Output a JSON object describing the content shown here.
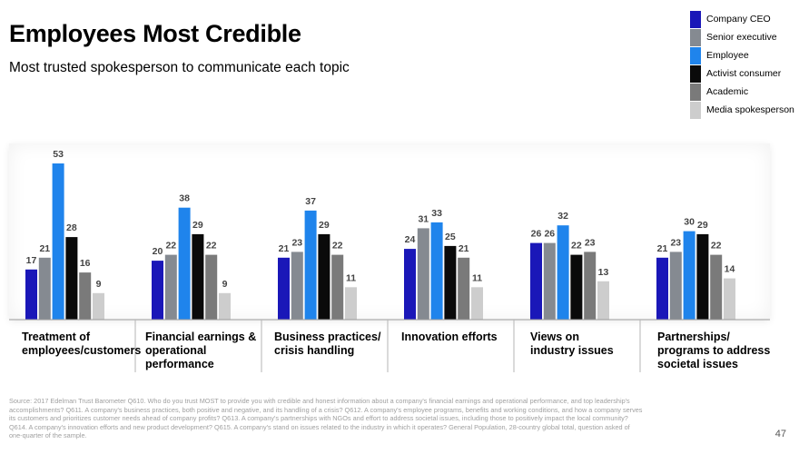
{
  "header": {
    "title": "Employees Most Credible",
    "subtitle": "Most trusted spokesperson to communicate each topic"
  },
  "chart_data": {
    "type": "bar",
    "title": "Employees Most Credible",
    "subtitle": "Most trusted spokesperson to communicate each topic",
    "categories": [
      "Treatment of employees/customers",
      "Financial earnings & operational performance",
      "Business practices/ crisis handling",
      "Innovation efforts",
      "Views on industry issues",
      "Partnerships/ programs to address societal issues"
    ],
    "series": [
      {
        "name": "Company CEO",
        "color": "#1a17b8",
        "values": [
          17,
          20,
          21,
          24,
          26,
          21
        ]
      },
      {
        "name": "Senior executive",
        "color": "#858a91",
        "values": [
          21,
          22,
          23,
          31,
          26,
          23
        ]
      },
      {
        "name": "Employee",
        "color": "#1f84ec",
        "values": [
          53,
          38,
          37,
          33,
          32,
          30
        ]
      },
      {
        "name": "Activist consumer",
        "color": "#0a0a0a",
        "values": [
          28,
          29,
          29,
          25,
          22,
          29
        ]
      },
      {
        "name": "Academic",
        "color": "#7a7a7a",
        "values": [
          16,
          22,
          22,
          21,
          23,
          22
        ]
      },
      {
        "name": "Media spokesperson",
        "color": "#cdcdcd",
        "values": [
          9,
          9,
          11,
          11,
          13,
          14
        ]
      }
    ],
    "ylim": [
      0,
      60
    ],
    "legend_position": "top-right",
    "xlabel": "",
    "ylabel": ""
  },
  "category_lines": [
    [
      "Treatment of",
      "employees/customers"
    ],
    [
      "Financial earnings &",
      "operational",
      "performance"
    ],
    [
      "Business practices/",
      "crisis handling"
    ],
    [
      "Innovation efforts"
    ],
    [
      "Views on",
      "industry issues"
    ],
    [
      "Partnerships/",
      "programs to address",
      "societal issues"
    ]
  ],
  "footer": {
    "source": "Source: 2017 Edelman Trust Barometer Q610. Who do you trust MOST to provide you with credible and honest information about a company's financial earnings and operational performance, and top leadership's accomplishments? Q611. A company's business practices, both positive and negative, and its handling of a crisis? Q612. A company's employee programs, benefits and working conditions, and how a company serves its customers and prioritizes customer needs ahead of company profits? Q613. A company's partnerships with NGOs and effort to address societal issues, including those to positively impact the local community? Q614. A company's innovation efforts and new product development? Q615. A company's stand on issues related to the industry in which it operates? General Population, 28-country global total, question asked of one-quarter of the sample.",
    "page_number": "47"
  }
}
